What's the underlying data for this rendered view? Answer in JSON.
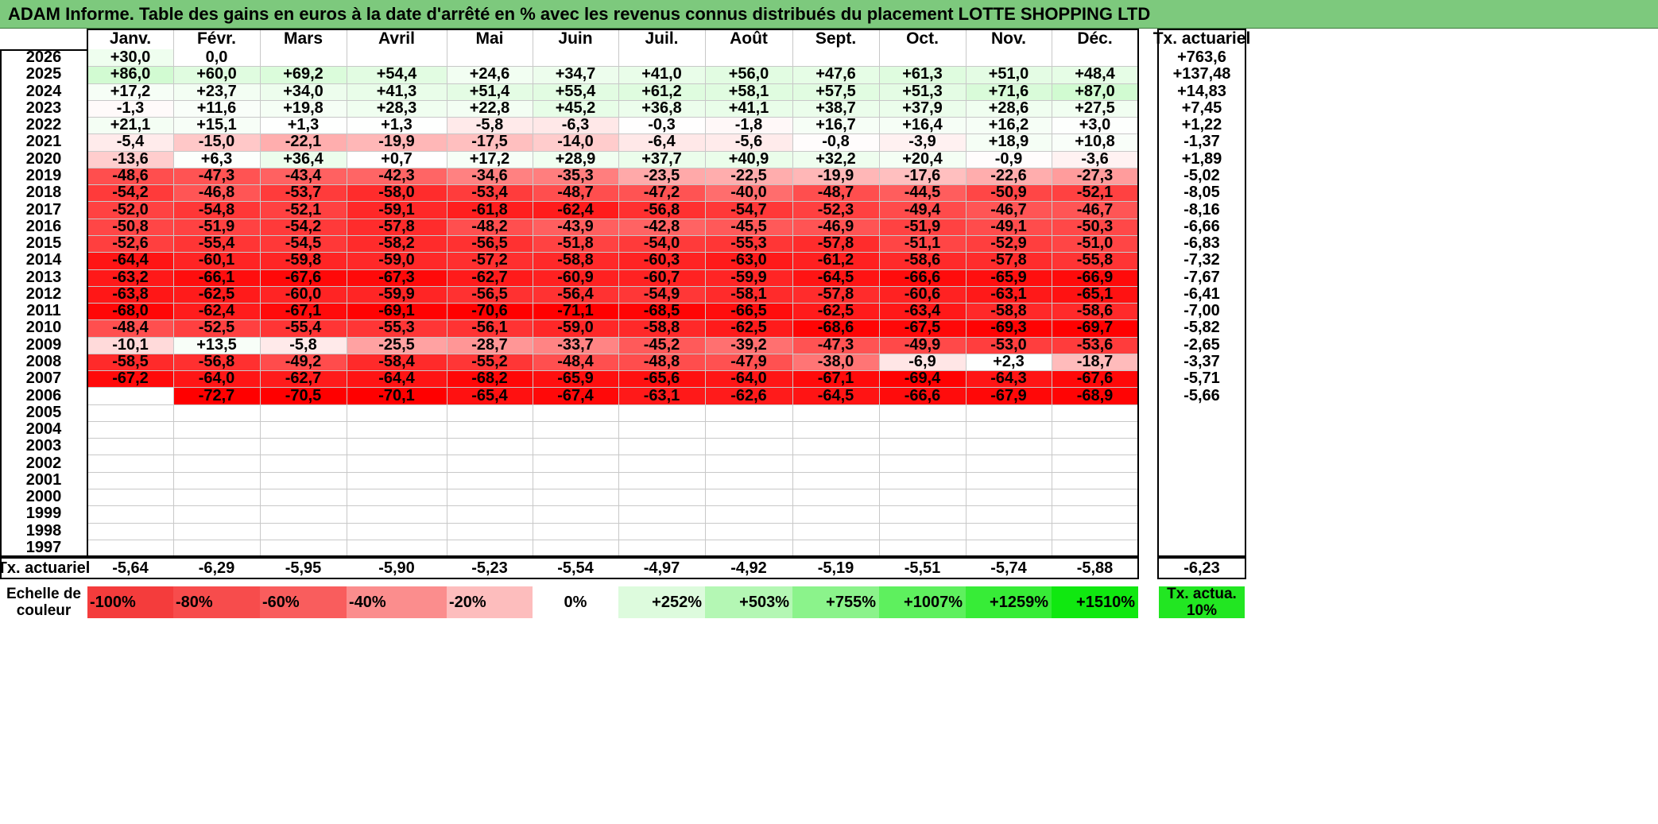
{
  "title": "ADAM Informe. Table des gains en euros à la date d'arrêté en % avec les revenus connus distribués du placement LOTTE SHOPPING LTD",
  "months": [
    "Janv.",
    "Févr.",
    "Mars",
    "Avril",
    "Mai",
    "Juin",
    "Juil.",
    "Août",
    "Sept.",
    "Oct.",
    "Nov.",
    "Déc."
  ],
  "annual_header": "Tx. actuariel",
  "rows": [
    {
      "year": "2026",
      "values": [
        "+30,0",
        "0,0",
        "",
        "",
        "",
        "",
        "",
        "",
        "",
        "",
        "",
        ""
      ],
      "annual": "+763,6"
    },
    {
      "year": "2025",
      "values": [
        "+86,0",
        "+60,0",
        "+69,2",
        "+54,4",
        "+24,6",
        "+34,7",
        "+41,0",
        "+56,0",
        "+47,6",
        "+61,3",
        "+51,0",
        "+48,4"
      ],
      "annual": "+137,48"
    },
    {
      "year": "2024",
      "values": [
        "+17,2",
        "+23,7",
        "+34,0",
        "+41,3",
        "+51,4",
        "+55,4",
        "+61,2",
        "+58,1",
        "+57,5",
        "+51,3",
        "+71,6",
        "+87,0"
      ],
      "annual": "+14,83"
    },
    {
      "year": "2023",
      "values": [
        "-1,3",
        "+11,6",
        "+19,8",
        "+28,3",
        "+22,8",
        "+45,2",
        "+36,8",
        "+41,1",
        "+38,7",
        "+37,9",
        "+28,6",
        "+27,5"
      ],
      "annual": "+7,45"
    },
    {
      "year": "2022",
      "values": [
        "+21,1",
        "+15,1",
        "+1,3",
        "+1,3",
        "-5,8",
        "-6,3",
        "-0,3",
        "-1,8",
        "+16,7",
        "+16,4",
        "+16,2",
        "+3,0"
      ],
      "annual": "+1,22"
    },
    {
      "year": "2021",
      "values": [
        "-5,4",
        "-15,0",
        "-22,1",
        "-19,9",
        "-17,5",
        "-14,0",
        "-6,4",
        "-5,6",
        "-0,8",
        "-3,9",
        "+18,9",
        "+10,8"
      ],
      "annual": "-1,37"
    },
    {
      "year": "2020",
      "values": [
        "-13,6",
        "+6,3",
        "+36,4",
        "+0,7",
        "+17,2",
        "+28,9",
        "+37,7",
        "+40,9",
        "+32,2",
        "+20,4",
        "-0,9",
        "-3,6"
      ],
      "annual": "+1,89"
    },
    {
      "year": "2019",
      "values": [
        "-48,6",
        "-47,3",
        "-43,4",
        "-42,3",
        "-34,6",
        "-35,3",
        "-23,5",
        "-22,5",
        "-19,9",
        "-17,6",
        "-22,6",
        "-27,3"
      ],
      "annual": "-5,02"
    },
    {
      "year": "2018",
      "values": [
        "-54,2",
        "-46,8",
        "-53,7",
        "-58,0",
        "-53,4",
        "-48,7",
        "-47,2",
        "-40,0",
        "-48,7",
        "-44,5",
        "-50,9",
        "-52,1"
      ],
      "annual": "-8,05"
    },
    {
      "year": "2017",
      "values": [
        "-52,0",
        "-54,8",
        "-52,1",
        "-59,1",
        "-61,8",
        "-62,4",
        "-56,8",
        "-54,7",
        "-52,3",
        "-49,4",
        "-46,7",
        "-46,7"
      ],
      "annual": "-8,16"
    },
    {
      "year": "2016",
      "values": [
        "-50,8",
        "-51,9",
        "-54,2",
        "-57,8",
        "-48,2",
        "-43,9",
        "-42,8",
        "-45,5",
        "-46,9",
        "-51,9",
        "-49,1",
        "-50,3"
      ],
      "annual": "-6,66"
    },
    {
      "year": "2015",
      "values": [
        "-52,6",
        "-55,4",
        "-54,5",
        "-58,2",
        "-56,5",
        "-51,8",
        "-54,0",
        "-55,3",
        "-57,8",
        "-51,1",
        "-52,9",
        "-51,0"
      ],
      "annual": "-6,83"
    },
    {
      "year": "2014",
      "values": [
        "-64,4",
        "-60,1",
        "-59,8",
        "-59,0",
        "-57,2",
        "-58,8",
        "-60,3",
        "-63,0",
        "-61,2",
        "-58,6",
        "-57,8",
        "-55,8"
      ],
      "annual": "-7,32"
    },
    {
      "year": "2013",
      "values": [
        "-63,2",
        "-66,1",
        "-67,6",
        "-67,3",
        "-62,7",
        "-60,9",
        "-60,7",
        "-59,9",
        "-64,5",
        "-66,6",
        "-65,9",
        "-66,9"
      ],
      "annual": "-7,67"
    },
    {
      "year": "2012",
      "values": [
        "-63,8",
        "-62,5",
        "-60,0",
        "-59,9",
        "-56,5",
        "-56,4",
        "-54,9",
        "-58,1",
        "-57,8",
        "-60,6",
        "-63,1",
        "-65,1"
      ],
      "annual": "-6,41"
    },
    {
      "year": "2011",
      "values": [
        "-68,0",
        "-62,4",
        "-67,1",
        "-69,1",
        "-70,6",
        "-71,1",
        "-68,5",
        "-66,5",
        "-62,5",
        "-63,4",
        "-58,8",
        "-58,6"
      ],
      "annual": "-7,00"
    },
    {
      "year": "2010",
      "values": [
        "-48,4",
        "-52,5",
        "-55,4",
        "-55,3",
        "-56,1",
        "-59,0",
        "-58,8",
        "-62,5",
        "-68,6",
        "-67,5",
        "-69,3",
        "-69,7"
      ],
      "annual": "-5,82"
    },
    {
      "year": "2009",
      "values": [
        "-10,1",
        "+13,5",
        "-5,8",
        "-25,5",
        "-28,7",
        "-33,7",
        "-45,2",
        "-39,2",
        "-47,3",
        "-49,9",
        "-53,0",
        "-53,6"
      ],
      "annual": "-2,65"
    },
    {
      "year": "2008",
      "values": [
        "-58,5",
        "-56,8",
        "-49,2",
        "-58,4",
        "-55,2",
        "-48,4",
        "-48,8",
        "-47,9",
        "-38,0",
        "-6,9",
        "+2,3",
        "-18,7"
      ],
      "annual": "-3,37"
    },
    {
      "year": "2007",
      "values": [
        "-67,2",
        "-64,0",
        "-62,7",
        "-64,4",
        "-68,2",
        "-65,9",
        "-65,6",
        "-64,0",
        "-67,1",
        "-69,4",
        "-64,3",
        "-67,6"
      ],
      "annual": "-5,71"
    },
    {
      "year": "2006",
      "values": [
        "",
        "-72,7",
        "-70,5",
        "-70,1",
        "-65,4",
        "-67,4",
        "-63,1",
        "-62,6",
        "-64,5",
        "-66,6",
        "-67,9",
        "-68,9"
      ],
      "annual": "-5,66"
    },
    {
      "year": "2005",
      "values": [
        "",
        "",
        "",
        "",
        "",
        "",
        "",
        "",
        "",
        "",
        "",
        ""
      ],
      "annual": ""
    },
    {
      "year": "2004",
      "values": [
        "",
        "",
        "",
        "",
        "",
        "",
        "",
        "",
        "",
        "",
        "",
        ""
      ],
      "annual": ""
    },
    {
      "year": "2003",
      "values": [
        "",
        "",
        "",
        "",
        "",
        "",
        "",
        "",
        "",
        "",
        "",
        ""
      ],
      "annual": ""
    },
    {
      "year": "2002",
      "values": [
        "",
        "",
        "",
        "",
        "",
        "",
        "",
        "",
        "",
        "",
        "",
        ""
      ],
      "annual": ""
    },
    {
      "year": "2001",
      "values": [
        "",
        "",
        "",
        "",
        "",
        "",
        "",
        "",
        "",
        "",
        "",
        ""
      ],
      "annual": ""
    },
    {
      "year": "2000",
      "values": [
        "",
        "",
        "",
        "",
        "",
        "",
        "",
        "",
        "",
        "",
        "",
        ""
      ],
      "annual": ""
    },
    {
      "year": "1999",
      "values": [
        "",
        "",
        "",
        "",
        "",
        "",
        "",
        "",
        "",
        "",
        "",
        ""
      ],
      "annual": ""
    },
    {
      "year": "1998",
      "values": [
        "",
        "",
        "",
        "",
        "",
        "",
        "",
        "",
        "",
        "",
        "",
        ""
      ],
      "annual": ""
    },
    {
      "year": "1997",
      "values": [
        "",
        "",
        "",
        "",
        "",
        "",
        "",
        "",
        "",
        "",
        "",
        ""
      ],
      "annual": ""
    }
  ],
  "footer": {
    "label": "Tx. actuariel",
    "values": [
      "-5,64",
      "-6,29",
      "-5,95",
      "-5,90",
      "-5,23",
      "-5,54",
      "-4,97",
      "-4,92",
      "-5,19",
      "-5,51",
      "-5,74",
      "-5,88"
    ],
    "annual": "-6,23"
  },
  "legend": {
    "label": "Echelle de couleur",
    "items": [
      "-100%",
      "-80%",
      "-60%",
      "-40%",
      "-20%",
      "0%",
      "+252%",
      "+503%",
      "+755%",
      "+1007%",
      "+1259%",
      "+1510%"
    ],
    "colors": [
      "#f43c3c",
      "#f74c4c",
      "#f95d5d",
      "#fb8d8d",
      "#fdbdbd",
      "#ffffff",
      "#ddfbdd",
      "#b4f7b4",
      "#8bf38b",
      "#5ef05e",
      "#37ec37",
      "#10e810"
    ],
    "annual": "Tx. actua. 10%",
    "annual_color": "#22e622"
  },
  "colors": {
    "title_bg": "#7dc97d",
    "neg_max": "#ff0000",
    "pos_max": "#00e600"
  }
}
